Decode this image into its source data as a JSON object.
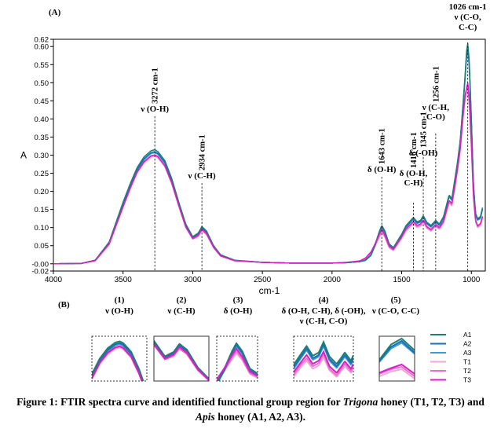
{
  "panel_a_label": "(A)",
  "panel_b_label": "(B)",
  "caption": {
    "part1": "Figure 1: FTIR spectra curve and identified functional group region for ",
    "italic1": "Trigona",
    "part2": " honey (T1, T2, T3) and ",
    "italic2": "Apis",
    "part3": " honey (A1, A2, A3)."
  },
  "colors": {
    "A1": "#1d7f72",
    "A2": "#1a6fb5",
    "A3": "#3a9bd8",
    "T1": "#f4a6d7",
    "T2": "#e96fcf",
    "T3": "#d81fc8"
  },
  "chart_data": {
    "type": "line",
    "xlabel": "cm-1",
    "ylabel": "A",
    "xlim": [
      4000,
      900
    ],
    "ylim": [
      -0.02,
      0.62
    ],
    "x_ticks": [
      4000,
      3500,
      3000,
      2500,
      2000,
      1500,
      1000
    ],
    "y_ticks": [
      -0.02,
      -0.0,
      0.05,
      0.1,
      0.15,
      0.2,
      0.25,
      0.3,
      0.35,
      0.4,
      0.45,
      0.5,
      0.55,
      0.6,
      0.62
    ],
    "y_tick_labels": [
      "-0.02",
      "-0.00",
      "0.05",
      "0.10",
      "0.15",
      "0.20",
      "0.25",
      "0.30",
      "0.35",
      "0.40",
      "0.45",
      "0.50",
      "0.55",
      "0.60",
      "0.62"
    ],
    "x": [
      4000,
      3800,
      3700,
      3600,
      3500,
      3450,
      3400,
      3350,
      3300,
      3272,
      3250,
      3200,
      3150,
      3100,
      3050,
      3000,
      2960,
      2934,
      2900,
      2850,
      2800,
      2700,
      2500,
      2300,
      2100,
      2000,
      1900,
      1800,
      1760,
      1720,
      1690,
      1660,
      1643,
      1620,
      1590,
      1560,
      1500,
      1470,
      1440,
      1416,
      1390,
      1365,
      1345,
      1320,
      1290,
      1270,
      1256,
      1230,
      1200,
      1180,
      1160,
      1140,
      1120,
      1100,
      1080,
      1060,
      1045,
      1035,
      1026,
      1015,
      1000,
      985,
      970,
      955,
      935,
      920
    ],
    "series": [
      {
        "name": "A1",
        "values": [
          0.0,
          0.001,
          0.01,
          0.06,
          0.17,
          0.22,
          0.265,
          0.295,
          0.312,
          0.315,
          0.31,
          0.285,
          0.235,
          0.17,
          0.11,
          0.075,
          0.085,
          0.103,
          0.09,
          0.05,
          0.025,
          0.01,
          0.004,
          0.002,
          0.002,
          0.002,
          0.003,
          0.006,
          0.01,
          0.025,
          0.055,
          0.09,
          0.106,
          0.09,
          0.055,
          0.045,
          0.082,
          0.105,
          0.118,
          0.128,
          0.116,
          0.12,
          0.133,
          0.115,
          0.106,
          0.114,
          0.12,
          0.11,
          0.13,
          0.16,
          0.19,
          0.18,
          0.23,
          0.28,
          0.34,
          0.44,
          0.52,
          0.585,
          0.61,
          0.56,
          0.4,
          0.22,
          0.14,
          0.125,
          0.13,
          0.155
        ]
      },
      {
        "name": "A2",
        "values": [
          0.0,
          0.001,
          0.01,
          0.058,
          0.165,
          0.215,
          0.26,
          0.29,
          0.307,
          0.31,
          0.305,
          0.28,
          0.23,
          0.165,
          0.105,
          0.073,
          0.083,
          0.1,
          0.088,
          0.048,
          0.024,
          0.009,
          0.004,
          0.002,
          0.002,
          0.002,
          0.003,
          0.006,
          0.01,
          0.024,
          0.053,
          0.087,
          0.103,
          0.087,
          0.053,
          0.043,
          0.08,
          0.102,
          0.115,
          0.125,
          0.113,
          0.117,
          0.13,
          0.112,
          0.103,
          0.111,
          0.117,
          0.107,
          0.127,
          0.157,
          0.187,
          0.177,
          0.227,
          0.277,
          0.337,
          0.437,
          0.515,
          0.575,
          0.6,
          0.55,
          0.395,
          0.215,
          0.137,
          0.122,
          0.127,
          0.152
        ]
      },
      {
        "name": "A3",
        "values": [
          0.0,
          0.001,
          0.009,
          0.056,
          0.162,
          0.212,
          0.257,
          0.287,
          0.304,
          0.307,
          0.302,
          0.277,
          0.227,
          0.162,
          0.103,
          0.071,
          0.081,
          0.098,
          0.086,
          0.047,
          0.023,
          0.009,
          0.004,
          0.002,
          0.002,
          0.002,
          0.003,
          0.006,
          0.009,
          0.023,
          0.051,
          0.085,
          0.1,
          0.085,
          0.051,
          0.042,
          0.078,
          0.1,
          0.113,
          0.123,
          0.111,
          0.115,
          0.128,
          0.11,
          0.101,
          0.109,
          0.115,
          0.105,
          0.125,
          0.155,
          0.185,
          0.175,
          0.225,
          0.275,
          0.335,
          0.433,
          0.51,
          0.568,
          0.592,
          0.545,
          0.39,
          0.212,
          0.135,
          0.12,
          0.125,
          0.15
        ]
      },
      {
        "name": "T1",
        "values": [
          0.0,
          0.001,
          0.008,
          0.052,
          0.155,
          0.205,
          0.25,
          0.278,
          0.294,
          0.297,
          0.292,
          0.268,
          0.22,
          0.158,
          0.1,
          0.07,
          0.078,
          0.094,
          0.082,
          0.045,
          0.022,
          0.009,
          0.004,
          0.002,
          0.002,
          0.002,
          0.003,
          0.006,
          0.012,
          0.028,
          0.05,
          0.074,
          0.086,
          0.072,
          0.044,
          0.036,
          0.07,
          0.09,
          0.102,
          0.11,
          0.1,
          0.104,
          0.114,
          0.098,
          0.09,
          0.098,
          0.103,
          0.095,
          0.112,
          0.14,
          0.168,
          0.16,
          0.205,
          0.255,
          0.31,
          0.4,
          0.45,
          0.47,
          0.48,
          0.44,
          0.32,
          0.18,
          0.115,
          0.1,
          0.105,
          0.125
        ]
      },
      {
        "name": "T2",
        "values": [
          0.0,
          0.001,
          0.008,
          0.054,
          0.157,
          0.207,
          0.252,
          0.28,
          0.297,
          0.3,
          0.295,
          0.27,
          0.222,
          0.16,
          0.101,
          0.068,
          0.076,
          0.092,
          0.08,
          0.044,
          0.021,
          0.008,
          0.004,
          0.002,
          0.002,
          0.002,
          0.003,
          0.007,
          0.014,
          0.03,
          0.052,
          0.077,
          0.09,
          0.075,
          0.046,
          0.038,
          0.072,
          0.093,
          0.105,
          0.113,
          0.103,
          0.107,
          0.118,
          0.1,
          0.092,
          0.1,
          0.106,
          0.097,
          0.115,
          0.143,
          0.171,
          0.163,
          0.208,
          0.258,
          0.315,
          0.405,
          0.46,
          0.48,
          0.49,
          0.45,
          0.33,
          0.185,
          0.118,
          0.102,
          0.108,
          0.128
        ]
      },
      {
        "name": "T3",
        "values": [
          0.0,
          0.001,
          0.009,
          0.055,
          0.158,
          0.208,
          0.253,
          0.282,
          0.298,
          0.301,
          0.296,
          0.271,
          0.223,
          0.161,
          0.102,
          0.07,
          0.079,
          0.096,
          0.083,
          0.046,
          0.022,
          0.009,
          0.004,
          0.002,
          0.002,
          0.002,
          0.004,
          0.008,
          0.016,
          0.033,
          0.056,
          0.082,
          0.095,
          0.079,
          0.049,
          0.04,
          0.075,
          0.096,
          0.108,
          0.117,
          0.106,
          0.11,
          0.121,
          0.103,
          0.095,
          0.103,
          0.109,
          0.1,
          0.118,
          0.146,
          0.175,
          0.167,
          0.212,
          0.262,
          0.32,
          0.41,
          0.465,
          0.485,
          0.5,
          0.46,
          0.335,
          0.19,
          0.121,
          0.105,
          0.111,
          0.131
        ]
      }
    ],
    "annotations": [
      {
        "x": 3272,
        "lines": [
          "3272 cm-1",
          "ν (O-H)"
        ]
      },
      {
        "x": 2934,
        "lines": [
          "2934 cm-1",
          "ν (C-H)"
        ]
      },
      {
        "x": 1643,
        "lines": [
          "1643 cm-1",
          "δ (O-H)"
        ]
      },
      {
        "x": 1416,
        "lines": [
          "1416 cm-1",
          "δ (O-H,",
          "C-H)"
        ]
      },
      {
        "x": 1345,
        "lines": [
          "1345 cm-1",
          "δ (-OH)"
        ]
      },
      {
        "x": 1256,
        "lines": [
          "1256 cm-1",
          "ν (C-H,",
          "C-O)"
        ]
      },
      {
        "x": 1026,
        "lines": [
          "1026 cm-1",
          "ν (C-O,",
          "C-C)"
        ]
      }
    ],
    "legend": [
      "A1",
      "A2",
      "A3",
      "T1",
      "T2",
      "T3"
    ],
    "legend_placement": "right of panel B",
    "zoom_panels": [
      {
        "number": "(1)",
        "label": "ν (O-H)",
        "x_range": [
          3450,
          3100
        ],
        "y_range": [
          0.2,
          0.33
        ],
        "border": "dashed"
      },
      {
        "number": "(2)",
        "label": "ν (C-H)",
        "x_range": [
          3050,
          2800
        ],
        "y_range": [
          0.02,
          0.12
        ],
        "border": "solid"
      },
      {
        "number": "(3)",
        "label": "δ (O-H)",
        "x_range": [
          1720,
          1560
        ],
        "y_range": [
          0.03,
          0.12
        ],
        "border": "dashed"
      },
      {
        "number": "(4)",
        "label_lines": [
          "δ (O-H, C-H), δ (-OH),",
          "ν (C-H, C-O)"
        ],
        "x_range": [
          1470,
          1220
        ],
        "y_range": [
          0.085,
          0.14
        ],
        "border": "dashed"
      },
      {
        "number": "(5)",
        "label": "ν (C-O, C-C)",
        "x_range": [
          1045,
          1015
        ],
        "y_range": [
          0.43,
          0.62
        ],
        "border": "solid"
      }
    ]
  }
}
